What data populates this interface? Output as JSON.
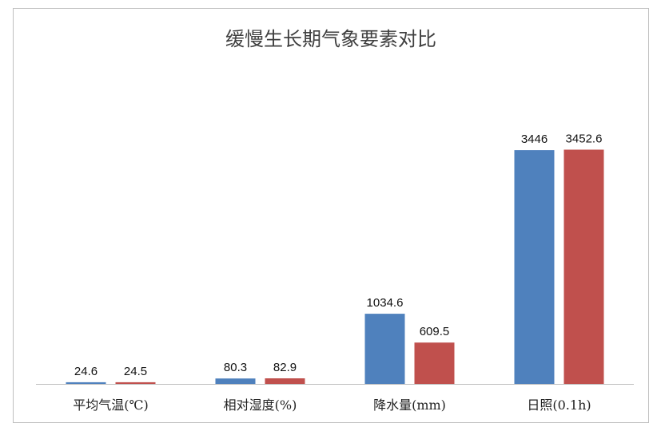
{
  "chart_data": {
    "type": "bar",
    "title": "缓慢生长期气象要素对比",
    "xlabel": "",
    "ylabel": "",
    "categories": [
      "平均气温(℃)",
      "相对湿度(%)",
      "降水量(mm)",
      "日照(0.1h)"
    ],
    "series": [
      {
        "values": [
          24.6,
          80.3,
          1034.6,
          3446
        ],
        "labels": [
          "24.6",
          "80.3",
          "1034.6",
          "3446"
        ],
        "color": "#4f81bd"
      },
      {
        "values": [
          24.5,
          82.9,
          609.5,
          3452.6
        ],
        "labels": [
          "24.5",
          "82.9",
          "609.5",
          "3452.6"
        ],
        "color": "#c0504d"
      }
    ],
    "ylim": [
      0,
      4000
    ],
    "grid": false,
    "legend": "none",
    "axis_color": "#bfbfbf"
  }
}
